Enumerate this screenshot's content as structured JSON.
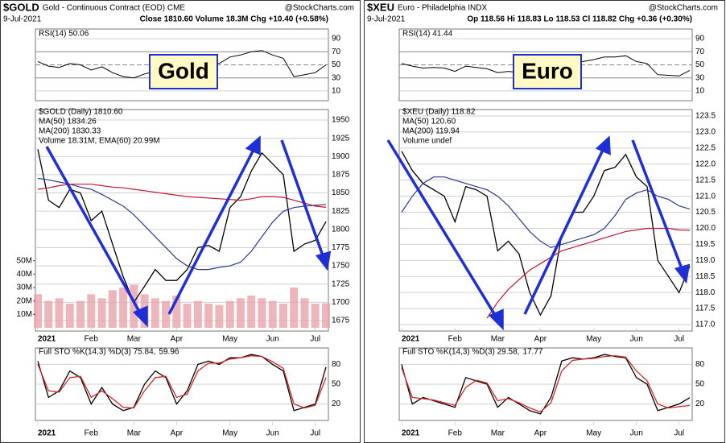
{
  "chart_data": [
    {
      "type": "line",
      "title": "$GOLD",
      "subtitle": "Gold - Continuous Contract (EOD) CME",
      "source": "@StockCharts.com",
      "date": "9-Jul-2021",
      "quote": "Close 1810.60 Volume 18.3M Chg +10.40 (+0.58%)",
      "label": "Gold",
      "label_color": "#c77d1a",
      "categories": [
        "2021",
        null,
        null,
        null,
        null,
        "Feb",
        null,
        null,
        null,
        "Mar",
        null,
        null,
        null,
        "Apr",
        null,
        null,
        null,
        null,
        "May",
        null,
        null,
        null,
        "Jun",
        null,
        null,
        null,
        "Jul",
        null
      ],
      "rsi": {
        "label": "RSI(14) 50.06",
        "ylim": [
          0,
          100
        ],
        "yticks": [
          10,
          30,
          50,
          70,
          90
        ],
        "values": [
          55,
          48,
          46,
          52,
          50,
          42,
          47,
          38,
          32,
          30,
          36,
          40,
          38,
          37,
          43,
          55,
          55,
          52,
          62,
          65,
          70,
          72,
          65,
          60,
          32,
          35,
          38,
          50.06
        ]
      },
      "price": {
        "label": "$GOLD (Daily) 1810.60",
        "ylim": [
          1665,
          1960
        ],
        "yticks": [
          1675,
          1700,
          1725,
          1750,
          1775,
          1800,
          1825,
          1850,
          1875,
          1900,
          1925,
          1950
        ],
        "series": [
          {
            "name": null,
            "color": "#000000",
            "values": [
              1910,
              1840,
              1830,
              1855,
              1850,
              1812,
              1825,
              1780,
              1735,
              1700,
              1722,
              1745,
              1730,
              1730,
              1745,
              1775,
              1778,
              1770,
              1830,
              1845,
              1880,
              1905,
              1890,
              1875,
              1770,
              1780,
              1785,
              1810.6
            ]
          },
          {
            "name": "MA(50) 1834.26",
            "color": "#2b3990",
            "values": [
              1870,
              1868,
              1865,
              1862,
              1858,
              1855,
              1848,
              1840,
              1832,
              1820,
              1805,
              1790,
              1775,
              1760,
              1750,
              1745,
              1745,
              1748,
              1750,
              1755,
              1770,
              1790,
              1810,
              1825,
              1830,
              1832,
              1833,
              1834.26
            ]
          },
          {
            "name": "MA(200) 1830.33",
            "color": "#c8102e",
            "values": [
              1855,
              1857,
              1860,
              1862,
              1862,
              1862,
              1860,
              1858,
              1857,
              1855,
              1853,
              1851,
              1849,
              1847,
              1845,
              1844,
              1843,
              1842,
              1841,
              1840,
              1842,
              1845,
              1845,
              1844,
              1840,
              1836,
              1832,
              1830.33
            ]
          }
        ]
      },
      "volume": {
        "label": "Volume 18.31M, EMA(60) 20.99M",
        "color": "#e7a4ab",
        "ylim": [
          0,
          60
        ],
        "yticks": [
          {
            "value": 10,
            "label": "10M"
          },
          {
            "value": 20,
            "label": "20M"
          },
          {
            "value": 30,
            "label": "30M"
          },
          {
            "value": 40,
            "label": "40M"
          },
          {
            "value": 50,
            "label": "50M"
          }
        ],
        "values": [
          25,
          20,
          22,
          18,
          20,
          25,
          22,
          28,
          30,
          32,
          25,
          22,
          20,
          24,
          18,
          20,
          18,
          17,
          20,
          22,
          24,
          22,
          20,
          18,
          30,
          22,
          18,
          18.31
        ]
      },
      "sto": {
        "label": "Full STO %K(14,3) %D(3) 75.84,",
        "label_d": "59.96",
        "ylim": [
          0,
          100
        ],
        "yticks": [
          20,
          50,
          80
        ],
        "series": [
          {
            "name": "%K",
            "color": "#000000",
            "values": [
              85,
              30,
              40,
              70,
              60,
              20,
              45,
              20,
              10,
              15,
              50,
              70,
              60,
              20,
              40,
              80,
              85,
              80,
              90,
              90,
              95,
              92,
              80,
              70,
              10,
              15,
              20,
              75.84
            ]
          },
          {
            "name": "%D",
            "color": "#d62728",
            "values": [
              80,
              40,
              38,
              60,
              62,
              30,
              40,
              28,
              15,
              14,
              40,
              60,
              62,
              30,
              35,
              70,
              82,
              82,
              88,
              90,
              93,
              92,
              84,
              74,
              20,
              14,
              18,
              59.96
            ]
          }
        ]
      }
    },
    {
      "type": "line",
      "title": "$XEU",
      "subtitle": "Euro - Philadelphia INDX",
      "source": "@StockCharts.com",
      "date": "9-Jul-2021",
      "quote": "Op 118.56 Hi 118.83 Lo 118.53 Cl 118.82 Chg +0.36 (+0.30%)",
      "label": "Euro",
      "label_color": "#0c5c0c",
      "categories": [
        "2021",
        null,
        null,
        null,
        null,
        "Feb",
        null,
        null,
        null,
        "Mar",
        null,
        null,
        null,
        "Apr",
        null,
        null,
        null,
        null,
        "May",
        null,
        null,
        null,
        "Jun",
        null,
        null,
        null,
        "Jul",
        null
      ],
      "rsi": {
        "label": "RSI(14) 41.44",
        "ylim": [
          0,
          100
        ],
        "yticks": [
          10,
          30,
          50,
          70,
          90
        ],
        "values": [
          52,
          48,
          45,
          46,
          45,
          40,
          48,
          46,
          44,
          38,
          40,
          38,
          34,
          32,
          38,
          52,
          56,
          55,
          58,
          62,
          62,
          64,
          55,
          52,
          35,
          34,
          33,
          41.44
        ]
      },
      "price": {
        "label": "$XEU (Daily) 118.82",
        "ylim": [
          116.9,
          123.6
        ],
        "yticks": [
          {
            "value": 117,
            "label": "117.0"
          },
          117.5,
          {
            "value": 118,
            "label": "118.0"
          },
          118.5,
          {
            "value": 119,
            "label": "119.0"
          },
          119.5,
          {
            "value": 120,
            "label": "120.0"
          },
          120.5,
          {
            "value": 121,
            "label": "121.0"
          },
          121.5,
          {
            "value": 122,
            "label": "122.0"
          },
          122.5,
          {
            "value": 123,
            "label": "123.0"
          },
          123.5
        ],
        "series": [
          {
            "name": null,
            "color": "#000000",
            "values": [
              122.4,
              121.8,
              121.4,
              121.2,
              121.0,
              120.2,
              121.3,
              121.2,
              121.0,
              119.3,
              119.6,
              119.2,
              118.0,
              117.3,
              117.9,
              119.8,
              120.5,
              120.5,
              121.0,
              121.8,
              121.9,
              122.3,
              121.6,
              121.3,
              119.0,
              118.5,
              118.0,
              118.82
            ]
          },
          {
            "name": "MA(50) 120.60",
            "color": "#2b3990",
            "values": [
              120.5,
              121.0,
              121.4,
              121.6,
              121.6,
              121.5,
              121.4,
              121.3,
              121.2,
              121.0,
              120.7,
              120.3,
              119.9,
              119.6,
              119.4,
              119.5,
              119.6,
              119.7,
              119.8,
              120.0,
              120.4,
              120.9,
              121.1,
              121.2,
              121.0,
              120.9,
              120.7,
              120.6
            ]
          },
          {
            "name": "MA(200) 119.94",
            "color": "#c8102e",
            "values": [
              null,
              null,
              null,
              null,
              null,
              null,
              null,
              null,
              117.2,
              117.7,
              118.1,
              118.4,
              118.7,
              118.9,
              119.1,
              119.3,
              119.4,
              119.5,
              119.6,
              119.7,
              119.8,
              119.9,
              119.95,
              120.0,
              120.0,
              120.0,
              119.95,
              119.94
            ]
          }
        ]
      },
      "volume": {
        "label": "Volume undef"
      },
      "sto": {
        "label": "Full STO %K(14,3) %D(3) 29.58,",
        "label_d": "17.77",
        "ylim": [
          0,
          100
        ],
        "yticks": [
          20,
          50,
          80
        ],
        "series": [
          {
            "name": "%K",
            "color": "#000000",
            "values": [
              80,
              20,
              30,
              25,
              20,
              15,
              60,
              55,
              50,
              15,
              30,
              20,
              10,
              5,
              30,
              85,
              90,
              88,
              90,
              95,
              92,
              90,
              60,
              50,
              10,
              15,
              20,
              29.58
            ]
          },
          {
            "name": "%D",
            "color": "#d62728",
            "values": [
              75,
              30,
              28,
              26,
              22,
              18,
              45,
              56,
              52,
              25,
              28,
              22,
              14,
              8,
              22,
              70,
              86,
              88,
              89,
              92,
              93,
              91,
              70,
              55,
              20,
              14,
              16,
              17.77
            ]
          }
        ]
      }
    }
  ]
}
